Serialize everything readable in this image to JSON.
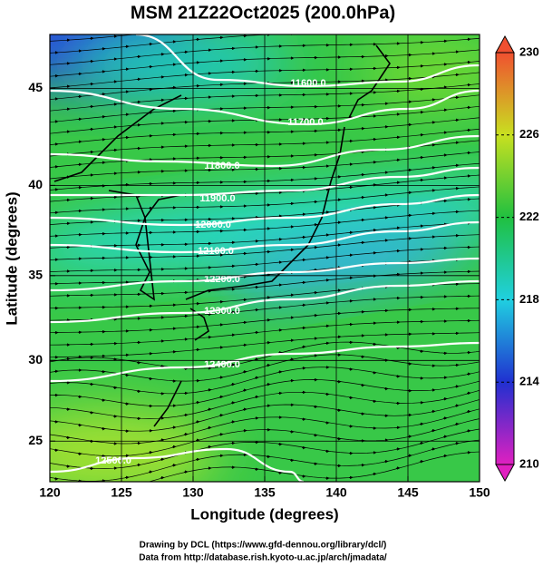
{
  "map": {
    "title": "MSM 21Z22Oct2025 (200.0hPa)",
    "x_label": "Longitude (degrees)",
    "y_label": "Latitude  (degrees)",
    "xlim": [
      120,
      150
    ],
    "xticks": [
      120,
      125,
      130,
      135,
      140,
      145,
      150
    ],
    "ylim": [
      22.4,
      47.6
    ],
    "yticks": [
      25,
      30,
      35,
      40,
      45
    ],
    "projection": "mercator",
    "grid": true,
    "colorbar": {
      "lim": [
        210,
        230
      ],
      "ticks": [
        210,
        214,
        218,
        222,
        226,
        230
      ],
      "colors": [
        "#e020c0",
        "#2030d0",
        "#20d0e0",
        "#20c040",
        "#c8e020",
        "#f05030"
      ]
    },
    "contours": [
      {
        "value": 11600,
        "label": "11600.0"
      },
      {
        "value": 11700,
        "label": "11700.0"
      },
      {
        "value": 11800,
        "label": "11800.0"
      },
      {
        "value": 11900,
        "label": "11900.0"
      },
      {
        "value": 12000,
        "label": "12000.0"
      },
      {
        "value": 12100,
        "label": "12100.0"
      },
      {
        "value": 12200,
        "label": "12200.0"
      },
      {
        "value": 12300,
        "label": "12300.0"
      },
      {
        "value": 12400,
        "label": "12400.0"
      },
      {
        "value": 12500,
        "label": "12500.0"
      }
    ],
    "credits": [
      "Drawing by DCL (https://www.gfd-dennou.org/library/dcl/)",
      "Data from http://database.rish.kyoto-u.ac.jp/arch/jmadata/"
    ]
  }
}
